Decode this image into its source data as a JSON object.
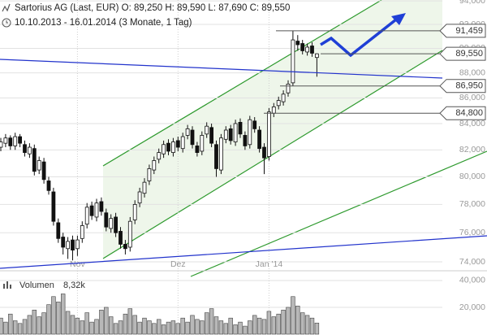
{
  "chart_data": {
    "type": "candlestick",
    "title": "Sartorius AG (Last, EUR)  O: 89,250  H: 89,590  L: 87,690  C: 89,550",
    "subtitle": "10.10.2013 - 16.01.2014 (3 Monate, 1 Tag)",
    "categories": [
      null,
      null,
      null,
      null,
      null,
      null,
      null,
      null,
      null,
      null,
      null,
      null,
      null,
      null,
      null,
      null,
      "Nov",
      null,
      null,
      null,
      null,
      null,
      null,
      null,
      null,
      null,
      null,
      null,
      null,
      null,
      null,
      null,
      null,
      null,
      null,
      null,
      null,
      "Dez",
      null,
      null,
      null,
      null,
      null,
      null,
      null,
      null,
      null,
      null,
      null,
      null,
      null,
      null,
      null,
      null,
      null,
      null,
      "Jan '14",
      null,
      null,
      null,
      null,
      null,
      null,
      null,
      null,
      null,
      null
    ],
    "open": [
      82200,
      82500,
      82900,
      82300,
      83000,
      82400,
      81700,
      82100,
      80500,
      81100,
      79700,
      78900,
      76700,
      75700,
      74900,
      75500,
      74900,
      75600,
      76600,
      77900,
      77100,
      78200,
      77400,
      76300,
      77100,
      76100,
      75200,
      75000,
      76900,
      78100,
      78800,
      79700,
      80500,
      81300,
      81700,
      82500,
      81800,
      82700,
      82100,
      83100,
      83500,
      82300,
      81900,
      83200,
      83700,
      82400,
      80500,
      82800,
      83600,
      82600,
      84100,
      83100,
      82400,
      84200,
      83500,
      82200,
      81500,
      84800,
      85400,
      85700,
      86400,
      87200,
      90600,
      90400,
      89700,
      90200,
      89250
    ],
    "high": [
      82900,
      83200,
      83100,
      83300,
      83200,
      82700,
      82500,
      82400,
      81500,
      81400,
      80000,
      79200,
      77000,
      76000,
      75700,
      75800,
      75800,
      76800,
      78100,
      78200,
      78400,
      78500,
      77700,
      77300,
      77400,
      76400,
      75500,
      77100,
      78300,
      79200,
      79900,
      80900,
      81500,
      82100,
      82700,
      82800,
      82900,
      83000,
      83300,
      83900,
      83800,
      82600,
      83400,
      84100,
      84000,
      82700,
      83200,
      83800,
      83900,
      84300,
      84400,
      83400,
      84600,
      84500,
      83800,
      82500,
      85200,
      85600,
      86100,
      86600,
      87400,
      91459,
      91100,
      90700,
      90400,
      90500,
      89590
    ],
    "low": [
      81900,
      82200,
      82000,
      82000,
      82200,
      81500,
      81400,
      80100,
      80200,
      79500,
      78700,
      76500,
      75300,
      74500,
      74200,
      74100,
      74400,
      75300,
      76300,
      76900,
      76800,
      77200,
      76100,
      76000,
      75700,
      74900,
      74500,
      74700,
      76600,
      77800,
      78500,
      79400,
      80200,
      81000,
      81400,
      81600,
      81500,
      81900,
      81800,
      82800,
      82100,
      81500,
      81600,
      82900,
      82200,
      80000,
      80200,
      82500,
      82400,
      82300,
      82900,
      82000,
      82100,
      83300,
      81800,
      80200,
      81200,
      84500,
      85100,
      85400,
      86100,
      86950,
      89800,
      89500,
      89400,
      89300,
      87690
    ],
    "close": [
      82600,
      82900,
      82300,
      83000,
      82500,
      81800,
      82200,
      80400,
      81200,
      79800,
      79000,
      76800,
      75600,
      75000,
      75400,
      74800,
      75500,
      76500,
      77800,
      77200,
      78100,
      77500,
      76400,
      77000,
      76000,
      75200,
      74900,
      76800,
      78000,
      78900,
      79600,
      80600,
      81200,
      81800,
      82400,
      81900,
      82600,
      82200,
      83000,
      83600,
      82400,
      81800,
      83100,
      83800,
      82500,
      80600,
      82900,
      83500,
      82700,
      84000,
      83200,
      82300,
      84300,
      83600,
      82100,
      81400,
      84900,
      85300,
      85800,
      86300,
      87100,
      90700,
      90300,
      89800,
      90100,
      89600,
      89550
    ],
    "log_scale": true,
    "grid": true,
    "ylim": [
      73560,
      94080
    ],
    "yticks": [
      {
        "value": 74000,
        "label": "74,000"
      },
      {
        "value": 76000,
        "label": "76,000"
      },
      {
        "value": 78000,
        "label": "78,000"
      },
      {
        "value": 80000,
        "label": "80,000"
      },
      {
        "value": 82000,
        "label": "82,000"
      },
      {
        "value": 84000,
        "label": "84,000"
      },
      {
        "value": 86000,
        "label": "86,000"
      },
      {
        "value": 88000,
        "label": "88,000"
      },
      {
        "value": 90000,
        "label": "90,000"
      },
      {
        "value": 92000,
        "label": "92,000"
      },
      {
        "value": 94000,
        "label": "94,000"
      }
    ],
    "price_labels": [
      {
        "value": 91459,
        "label": "91,459"
      },
      {
        "value": 89550,
        "label": "89,550"
      },
      {
        "value": 86950,
        "label": "86,950"
      },
      {
        "value": 84800,
        "label": "84,800"
      }
    ],
    "volume": {
      "name": "Volumen",
      "last_label": "8,32k",
      "color": "#b8b8b8",
      "values": [
        12000,
        9000,
        15000,
        10000,
        8000,
        11000,
        14000,
        18000,
        13000,
        16000,
        22000,
        28000,
        24000,
        30000,
        17000,
        14000,
        12000,
        10000,
        16000,
        9000,
        11000,
        18000,
        20000,
        13000,
        8000,
        10000,
        15000,
        19000,
        14000,
        9000,
        12000,
        10000,
        8000,
        11000,
        7000,
        9000,
        10000,
        8000,
        12000,
        9000,
        14000,
        11000,
        10000,
        16000,
        19000,
        13000,
        10000,
        8000,
        12000,
        7000,
        9000,
        6000,
        10000,
        14000,
        12000,
        11000,
        17000,
        13000,
        15000,
        18000,
        20000,
        28000,
        21000,
        16000,
        14000,
        12000,
        8320
      ],
      "ylim": [
        0,
        43000
      ],
      "yticks": [
        {
          "value": 20000,
          "label": "20,000"
        },
        {
          "value": 40000,
          "label": "40,000"
        }
      ]
    }
  }
}
